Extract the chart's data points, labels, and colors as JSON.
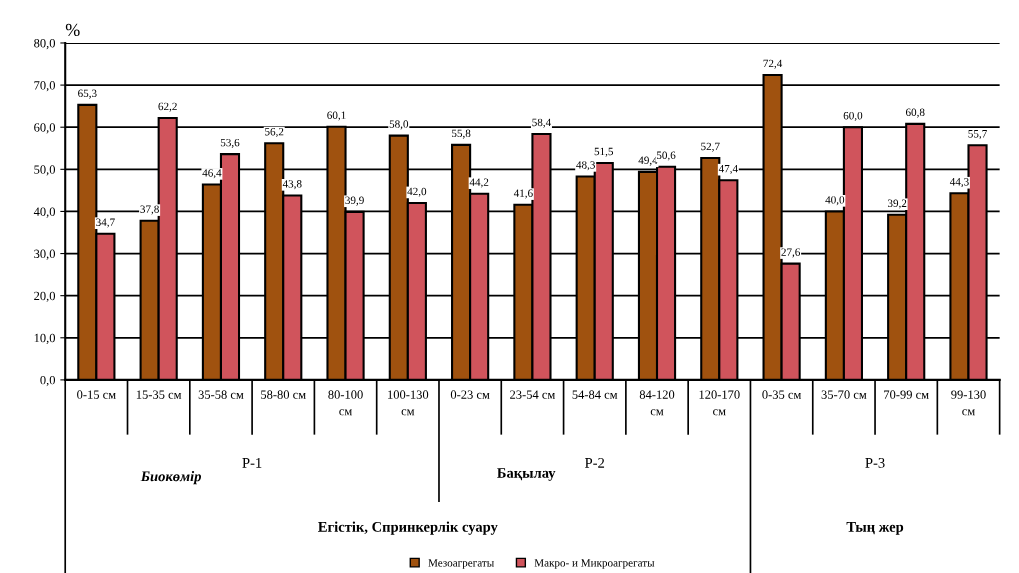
{
  "chart_data": {
    "type": "bar",
    "ylabel": "%",
    "categories": [
      "0-15 см",
      "15-35 см",
      "35-58 см",
      "58-80 см",
      "80-100 см",
      "100-130 см",
      "0-23 см",
      "23-54 см",
      "54-84 см",
      "84-120 см",
      "120-170 см",
      "0-35 см",
      "35-70 см",
      "70-99 см",
      "99-130 см"
    ],
    "series": [
      {
        "name": "Мезоагрегаты",
        "color": "#a0520f",
        "values": [
          65.3,
          37.8,
          46.4,
          56.2,
          60.1,
          58.0,
          55.8,
          41.6,
          48.3,
          49.4,
          52.7,
          72.4,
          40.0,
          39.2,
          44.3
        ],
        "value_labels": [
          "65,3",
          "37,8",
          "46,4",
          "56,2",
          "60,1",
          "58,0",
          "55,8",
          "41,6",
          "48,3",
          "49,4",
          "52,7",
          "72,4",
          "40,0",
          "39,2",
          "44,3"
        ]
      },
      {
        "name": "Макро- и Микроагрегаты",
        "color": "#d0545c",
        "values": [
          34.7,
          62.2,
          53.6,
          43.8,
          39.9,
          42.0,
          44.2,
          58.4,
          51.5,
          50.6,
          47.4,
          27.6,
          60.0,
          60.8,
          55.7
        ],
        "value_labels": [
          "34,7",
          "62,2",
          "53,6",
          "43,8",
          "39,9",
          "42,0",
          "44,2",
          "58,4",
          "51,5",
          "50,6",
          "47,4",
          "27,6",
          "60,0",
          "60,8",
          "55,7"
        ]
      }
    ],
    "ylim": [
      0,
      80
    ],
    "yticks": [
      {
        "value": 0,
        "label": "0,0"
      },
      {
        "value": 10,
        "label": "10,0"
      },
      {
        "value": 20,
        "label": "20,0"
      },
      {
        "value": 30,
        "label": "30,0"
      },
      {
        "value": 40,
        "label": "40,0"
      },
      {
        "value": 50,
        "label": "50,0"
      },
      {
        "value": 60,
        "label": "60,0"
      },
      {
        "value": 70,
        "label": "70,0"
      },
      {
        "value": 80,
        "label": "80,0"
      }
    ],
    "grid": "y",
    "legend": "bottom",
    "annotations": [
      "Биокөмір",
      "P-1",
      "Бақылау",
      "P-2",
      "P-3",
      "Егістік, Спринкерлік суару",
      "Тың жер"
    ]
  }
}
